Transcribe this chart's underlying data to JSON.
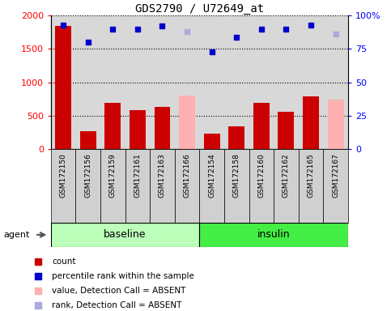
{
  "title": "GDS2790 / U72649_at",
  "samples": [
    "GSM172150",
    "GSM172156",
    "GSM172159",
    "GSM172161",
    "GSM172163",
    "GSM172166",
    "GSM172154",
    "GSM172158",
    "GSM172160",
    "GSM172162",
    "GSM172165",
    "GSM172167"
  ],
  "count_values": [
    1850,
    270,
    690,
    590,
    630,
    800,
    230,
    340,
    690,
    560,
    790,
    740
  ],
  "rank_values": [
    93,
    80,
    90,
    90,
    92,
    88,
    73,
    84,
    90,
    90,
    93,
    86
  ],
  "absent_flags": [
    false,
    false,
    false,
    false,
    false,
    true,
    false,
    false,
    false,
    false,
    false,
    true
  ],
  "bar_color_present": "#cc0000",
  "bar_color_absent": "#ffb0b0",
  "dot_color_present": "#0000cc",
  "dot_color_absent": "#aaaadd",
  "ylim_left": [
    0,
    2000
  ],
  "ylim_right": [
    0,
    100
  ],
  "yticks_left": [
    0,
    500,
    1000,
    1500,
    2000
  ],
  "ytick_labels_left": [
    "0",
    "500",
    "1000",
    "1500",
    "2000"
  ],
  "yticks_right": [
    0,
    25,
    50,
    75,
    100
  ],
  "ytick_labels_right": [
    "0",
    "25",
    "50",
    "75",
    "100%"
  ],
  "bg_color": "#d8d8d8",
  "baseline_bg": "#bbffbb",
  "insulin_bg": "#44ee44",
  "agent_label": "agent",
  "baseline_label": "baseline",
  "insulin_label": "insulin",
  "legend_items": [
    {
      "label": "count",
      "color": "#cc0000"
    },
    {
      "label": "percentile rank within the sample",
      "color": "#0000cc"
    },
    {
      "label": "value, Detection Call = ABSENT",
      "color": "#ffb0b0"
    },
    {
      "label": "rank, Detection Call = ABSENT",
      "color": "#aaaadd"
    }
  ]
}
